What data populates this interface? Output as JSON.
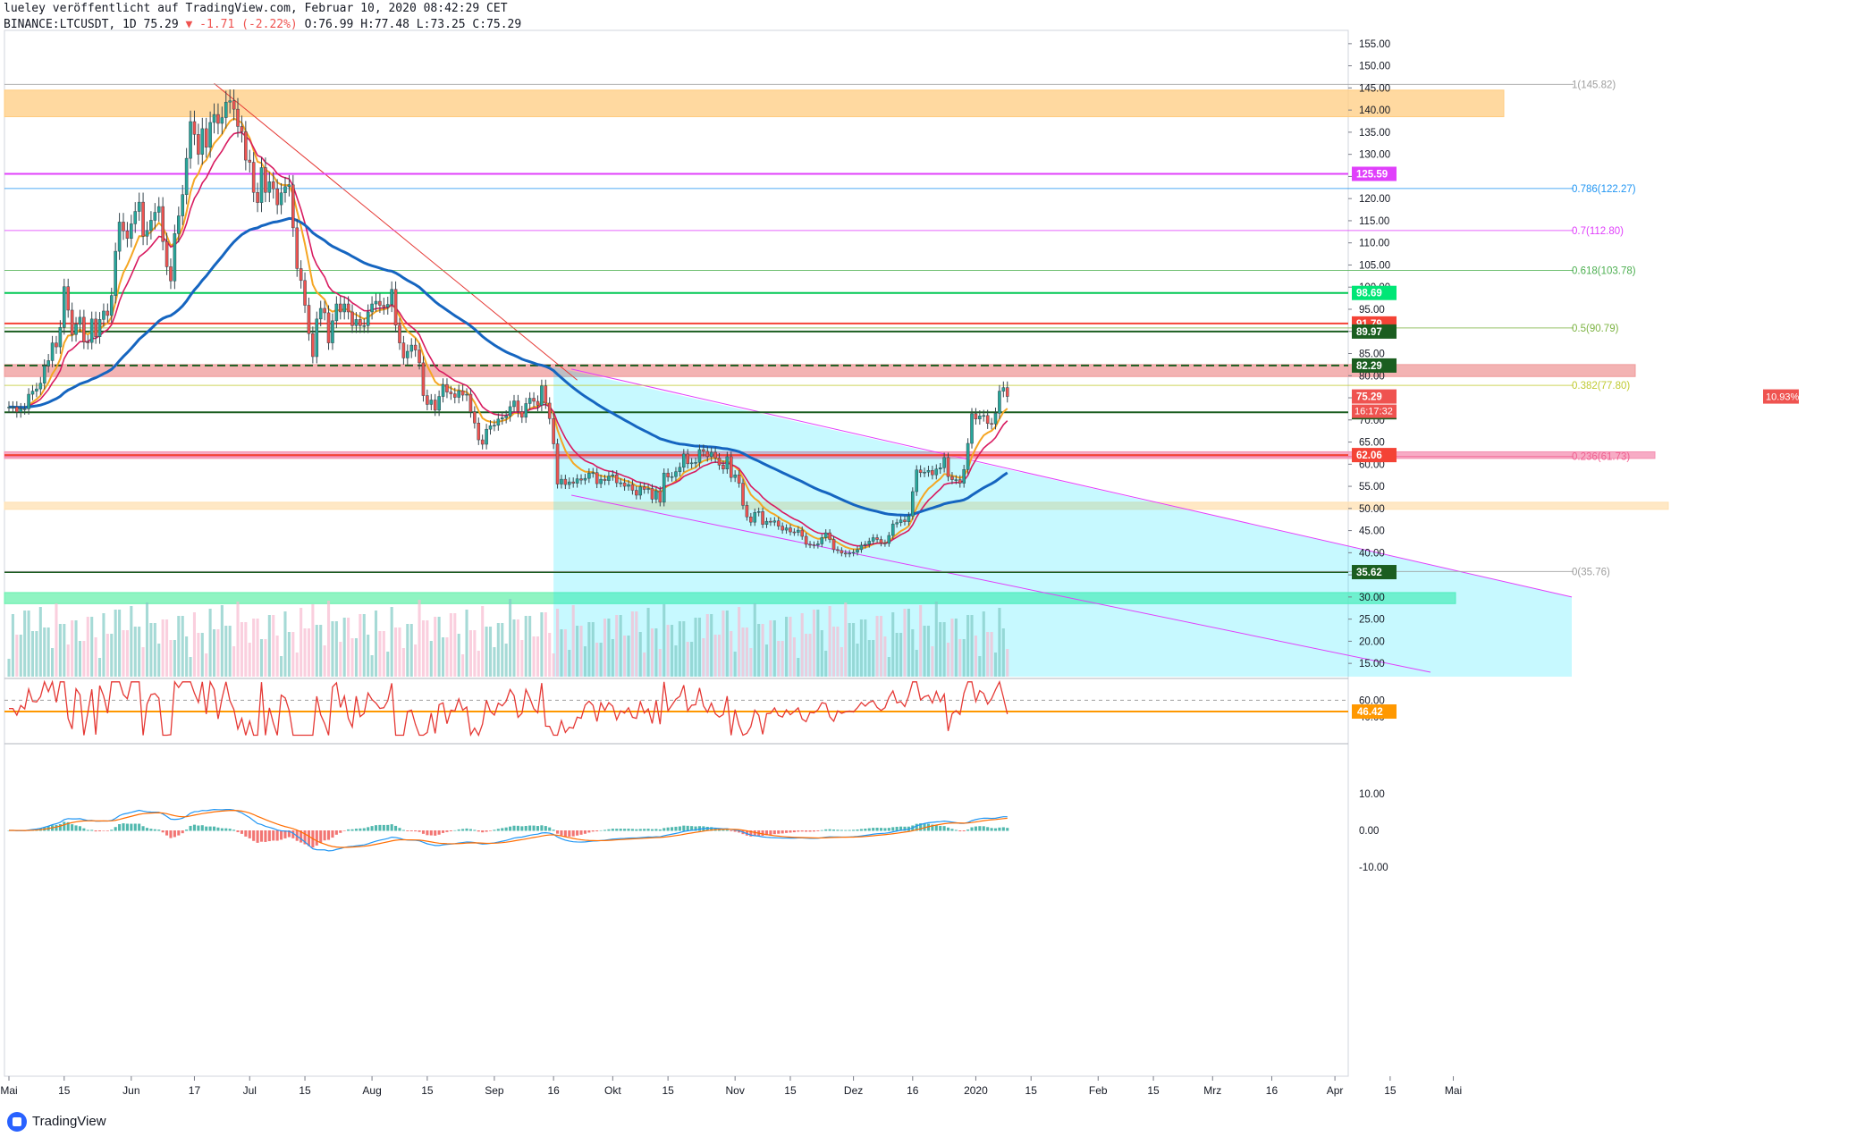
{
  "header": {
    "line1": "lueley veröffentlicht auf TradingView.com, Februar 10, 2020 08:42:29 CET",
    "symbol": "BINANCE:LTCUSDT, 1D",
    "last": "75.29",
    "change": "-1.71 (-2.22%)",
    "ohlc": "O:76.99 H:77.48 L:73.25 C:75.29"
  },
  "footer": {
    "brand": "TradingView"
  },
  "colors": {
    "up": "#26a69a",
    "down": "#ef5350",
    "sma200": "#1565c0",
    "ema_orange": "#f5a623",
    "ema_red": "#d81b60",
    "channel": "#00e5ff",
    "magenta": "#e040fb"
  },
  "chart_data": {
    "type": "candlestick",
    "price_axis": {
      "ylim": [
        12,
        158
      ],
      "ticks": [
        "155.00",
        "150.00",
        "145.00",
        "140.00",
        "135.00",
        "130.00",
        "125.00",
        "120.00",
        "115.00",
        "110.00",
        "105.00",
        "100.00",
        "95.00",
        "90.00",
        "85.00",
        "80.00",
        "75.00",
        "70.00",
        "65.00",
        "60.00",
        "55.00",
        "50.00",
        "45.00",
        "40.00",
        "35.00",
        "30.00",
        "25.00",
        "20.00",
        "15.00"
      ]
    },
    "time_axis": {
      "labels": [
        "Mai",
        "15",
        "Jun",
        "17",
        "Jul",
        "15",
        "Aug",
        "15",
        "Sep",
        "16",
        "Okt",
        "15",
        "Nov",
        "15",
        "Dez",
        "16",
        "2020",
        "15",
        "Feb",
        "15",
        "Mrz",
        "16",
        "Apr",
        "15",
        "Mai"
      ]
    },
    "price_labels": [
      {
        "value": 125.59,
        "text": "125.59",
        "color": "#e040fb"
      },
      {
        "value": 98.69,
        "text": "98.69",
        "color": "#00e676"
      },
      {
        "value": 91.79,
        "text": "91.79",
        "color": "#f44336"
      },
      {
        "value": 89.97,
        "text": "89.97",
        "color": "#1b5e20"
      },
      {
        "value": 82.29,
        "text": "82.29",
        "color": "#1b5e20"
      },
      {
        "value": 75.29,
        "text": "75.29",
        "color": "#ef5350"
      },
      {
        "value": 71.73,
        "text": "71.73",
        "color": "#1b5e20"
      },
      {
        "value": 62.06,
        "text": "62.06",
        "color": "#f44336"
      },
      {
        "value": 35.62,
        "text": "35.62",
        "color": "#1b5e20"
      }
    ],
    "extra_labels": {
      "pct": "10.93%",
      "countdown": "16:17:32"
    },
    "fib_levels": [
      {
        "label": "1(145.82)",
        "value": 145.82,
        "color": "#9e9e9e"
      },
      {
        "label": "0.786(122.27)",
        "value": 122.27,
        "color": "#2196f3"
      },
      {
        "label": "0.7(112.80)",
        "value": 112.8,
        "color": "#e040fb"
      },
      {
        "label": "0.618(103.78)",
        "value": 103.78,
        "color": "#4caf50"
      },
      {
        "label": "0.5(90.79)",
        "value": 90.79,
        "color": "#7cb342"
      },
      {
        "label": "0.382(77.80)",
        "value": 77.8,
        "color": "#c0ca33"
      },
      {
        "label": "0.236(61.73)",
        "value": 61.73,
        "color": "#f06292"
      },
      {
        "label": "0(35.76)",
        "value": 35.76,
        "color": "#9e9e9e"
      }
    ],
    "zones": [
      {
        "from": 138.5,
        "to": 144.5,
        "color": "#ffcc80"
      },
      {
        "from": 79.8,
        "to": 82.5,
        "color": "#ef9a9a"
      },
      {
        "from": 61.3,
        "to": 62.8,
        "color": "#f48fb1"
      },
      {
        "from": 49.8,
        "to": 51.4,
        "color": "#ffe0b2"
      },
      {
        "from": 28.5,
        "to": 31.0,
        "color": "#69f0ae"
      }
    ],
    "horizontal_lines": [
      {
        "value": 125.59,
        "color": "#e040fb"
      },
      {
        "value": 98.69,
        "color": "#00c853"
      },
      {
        "value": 91.79,
        "color": "#f44336"
      },
      {
        "value": 89.97,
        "color": "#1b5e20"
      },
      {
        "value": 82.29,
        "color": "#1b5e20",
        "dashed": true
      },
      {
        "value": 71.73,
        "color": "#1b5e20"
      },
      {
        "value": 62.06,
        "color": "#f44336"
      },
      {
        "value": 35.62,
        "color": "#1b5e20"
      }
    ],
    "close_series": {
      "start": "2019-05-01",
      "interval": "1D",
      "values": [
        72.9,
        72.9,
        71.8,
        72.5,
        72.5,
        75.8,
        76.5,
        77.0,
        78.3,
        82.2,
        83.4,
        87.4,
        86.5,
        90.9,
        100.1,
        94.8,
        89.3,
        91.6,
        93.2,
        87.6,
        87.5,
        92.8,
        88.8,
        92.7,
        94.6,
        93.6,
        98.1,
        108.1,
        114.7,
        112.7,
        111.0,
        114.3,
        117.1,
        119.2,
        111.5,
        112.8,
        115.1,
        116.9,
        118.2,
        110.3,
        104.6,
        101.4,
        112.1,
        116.1,
        120.9,
        129.1,
        137.4,
        134.5,
        130.0,
        135.8,
        131.6,
        137.2,
        139.0,
        137.0,
        138.3,
        141.8,
        142.1,
        140.2,
        136.3,
        135.1,
        128.7,
        128.2,
        121.4,
        119.1,
        127.0,
        121.4,
        123.8,
        122.2,
        118.6,
        121.3,
        122.7,
        123.1,
        113.4,
        104.2,
        101.5,
        95.9,
        89.5,
        84.3,
        92.8,
        95.2,
        94.2,
        87.4,
        92.4,
        96.2,
        94.4,
        96.2,
        94.4,
        91.3,
        92.7,
        91.3,
        91.3,
        94.4,
        96.2,
        96.8,
        95.9,
        95.5,
        96.1,
        99.5,
        91.4,
        87.4,
        84.0,
        85.5,
        86.9,
        85.8,
        82.9,
        75.5,
        73.5,
        74.5,
        72.2,
        75.3,
        78.0,
        76.3,
        75.9,
        75.1,
        76.6,
        75.6,
        75.8,
        71.8,
        69.3,
        65.5,
        64.5,
        67.9,
        68.7,
        68.8,
        70.2,
        70.5,
        70.9,
        73.0,
        74.3,
        71.9,
        70.6,
        73.7,
        74.9,
        74.2,
        73.3,
        77.7,
        73.8,
        70.3,
        64.6,
        55.5,
        56.6,
        55.4,
        56.0,
        55.7,
        56.7,
        56.4,
        56.8,
        58.0,
        58.1,
        55.6,
        56.6,
        56.3,
        57.3,
        57.6,
        55.8,
        55.8,
        55.0,
        55.4,
        54.1,
        53.0,
        54.9,
        54.3,
        54.5,
        52.1,
        54.0,
        51.4,
        58.0,
        57.1,
        57.2,
        58.3,
        59.3,
        62.3,
        60.1,
        60.3,
        60.4,
        63.3,
        62.9,
        61.7,
        62.7,
        61.4,
        59.8,
        58.9,
        61.7,
        57.0,
        57.6,
        55.7,
        50.7,
        48.1,
        46.9,
        49.1,
        49.3,
        46.4,
        47.1,
        46.9,
        47.2,
        46.0,
        45.1,
        45.6,
        44.7,
        44.6,
        45.1,
        43.7,
        41.9,
        41.8,
        41.7,
        42.0,
        43.4,
        44.5,
        43.0,
        40.7,
        40.5,
        39.9,
        39.7,
        39.9,
        40.1,
        40.7,
        41.7,
        41.9,
        42.6,
        43.4,
        43.0,
        42.2,
        42.1,
        43.9,
        46.5,
        46.8,
        47.4,
        47.0,
        48.3,
        53.8,
        58.7,
        58.1,
        58.2,
        58.6,
        57.6,
        58.9,
        59.2,
        61.5,
        57.2,
        56.5,
        56.5,
        55.7,
        58.8,
        64.7,
        71.4,
        70.2,
        70.9,
        71.0,
        69.2,
        69.1,
        71.5,
        76.5,
        77.3,
        75.3
      ]
    },
    "indicators": {
      "rsi_ticks": [
        "60.00",
        "40.00"
      ],
      "rsi_label": "46.42",
      "macd_ticks": [
        "10.00",
        "0.00",
        "-10.00"
      ]
    }
  }
}
